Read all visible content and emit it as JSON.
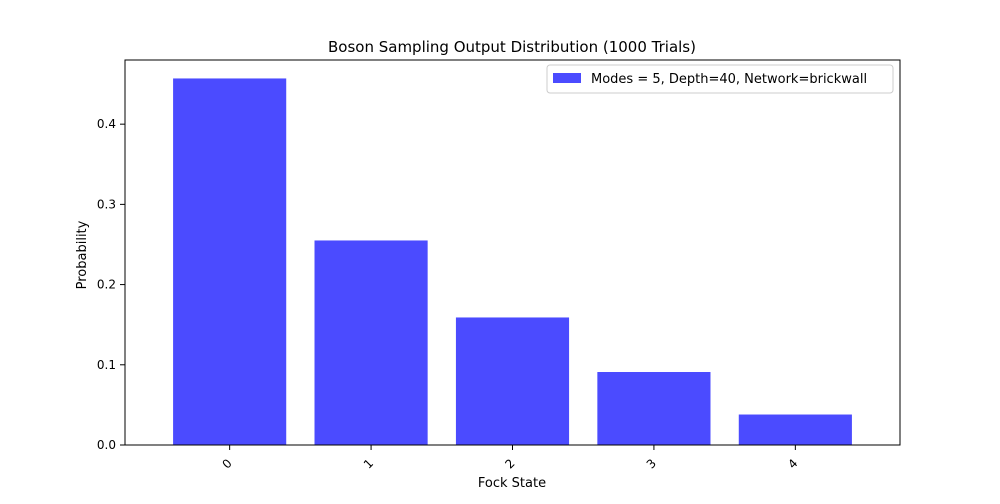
{
  "chart_data": {
    "type": "bar",
    "title": "Boson Sampling Output Distribution (1000 Trials)",
    "xlabel": "Fock State",
    "ylabel": "Probability",
    "categories": [
      "0",
      "1",
      "2",
      "3",
      "4"
    ],
    "series": [
      {
        "name": "Modes = 5, Depth=40, Network=brickwall",
        "values": [
          0.457,
          0.255,
          0.159,
          0.091,
          0.038
        ],
        "color": "#4b4bff"
      }
    ],
    "ylim": [
      0,
      0.48
    ],
    "yticks": [
      0.0,
      0.1,
      0.2,
      0.3,
      0.4
    ],
    "ytick_labels": [
      "0.0",
      "0.1",
      "0.2",
      "0.3",
      "0.4"
    ],
    "xtick_rotation": 45,
    "grid": false,
    "legend_position": "top-right"
  }
}
